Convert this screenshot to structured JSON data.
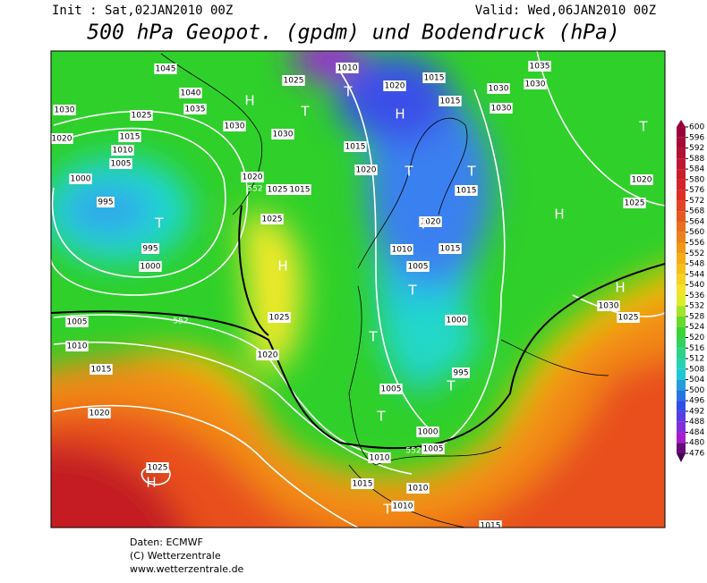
{
  "header": {
    "init": "Init : Sat,02JAN2010 00Z",
    "valid": "Valid: Wed,06JAN2010 00Z",
    "title": "500 hPa Geopot. (gpdm) und Bodendruck (hPa)"
  },
  "colorbar": {
    "ticks": [
      600,
      596,
      592,
      588,
      584,
      580,
      576,
      572,
      568,
      564,
      560,
      556,
      552,
      548,
      544,
      540,
      536,
      532,
      528,
      524,
      520,
      516,
      512,
      508,
      504,
      500,
      496,
      492,
      488,
      484,
      480,
      476
    ]
  },
  "map": {
    "pressure_labels": [
      1045,
      1040,
      1035,
      1030,
      1025,
      1030,
      1030,
      1020,
      1015,
      1010,
      1005,
      1000,
      995,
      995,
      1000,
      1025,
      1010,
      1020,
      1015,
      1015,
      1030,
      1030,
      1035,
      1030,
      1015,
      1020,
      1020,
      1025,
      1015,
      1025,
      1010,
      1020,
      1015,
      1005,
      1015,
      1020,
      1025,
      1030,
      1025,
      1025,
      1020,
      1005,
      1010,
      1015,
      1020,
      1000,
      995,
      1005,
      1000,
      1005,
      1010,
      1015,
      1010,
      1010,
      1025,
      1015
    ],
    "height_labels": [
      552,
      552,
      552
    ],
    "centers": [
      "H",
      "H",
      "H",
      "H",
      "H",
      "H",
      "T",
      "T",
      "T",
      "T",
      "T",
      "T",
      "T",
      "T",
      "T",
      "T",
      "T",
      "T"
    ]
  },
  "footer": [
    "Daten: ECMWF",
    "(C) Wetterzentrale",
    "www.wetterzentrale.de"
  ]
}
